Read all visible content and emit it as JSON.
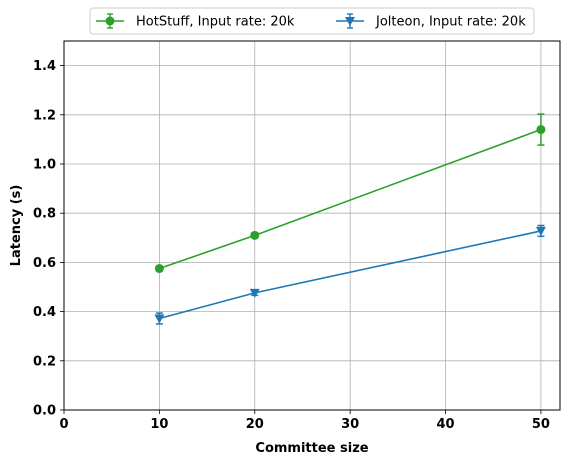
{
  "chart_data": {
    "type": "line",
    "xlabel": "Committee size",
    "ylabel": "Latency (s)",
    "xlim": [
      0,
      52
    ],
    "ylim": [
      0,
      1.5
    ],
    "xticks": [
      0,
      10,
      20,
      30,
      40,
      50
    ],
    "yticks": [
      0.0,
      0.2,
      0.4,
      0.6,
      0.8,
      1.0,
      1.2,
      1.4
    ],
    "xtick_labels": [
      "0",
      "10",
      "20",
      "30",
      "40",
      "50"
    ],
    "ytick_labels": [
      "0.0",
      "0.2",
      "0.4",
      "0.6",
      "0.8",
      "1.0",
      "1.2",
      "1.4"
    ],
    "grid": true,
    "legend_position": "top, above plot, two columns",
    "series": [
      {
        "name": "HotStuff, Input rate: 20k",
        "color": "#2ca02c",
        "marker": "circle",
        "x": [
          10,
          20,
          50
        ],
        "y": [
          0.575,
          0.71,
          1.14
        ],
        "yerr": [
          0.01,
          0.01,
          0.063
        ]
      },
      {
        "name": "Jolteon, Input rate: 20k",
        "color": "#1f77b4",
        "marker": "triangle-down",
        "x": [
          10,
          20,
          50
        ],
        "y": [
          0.372,
          0.476,
          0.728
        ],
        "yerr": [
          0.022,
          0.01,
          0.022
        ]
      }
    ]
  }
}
